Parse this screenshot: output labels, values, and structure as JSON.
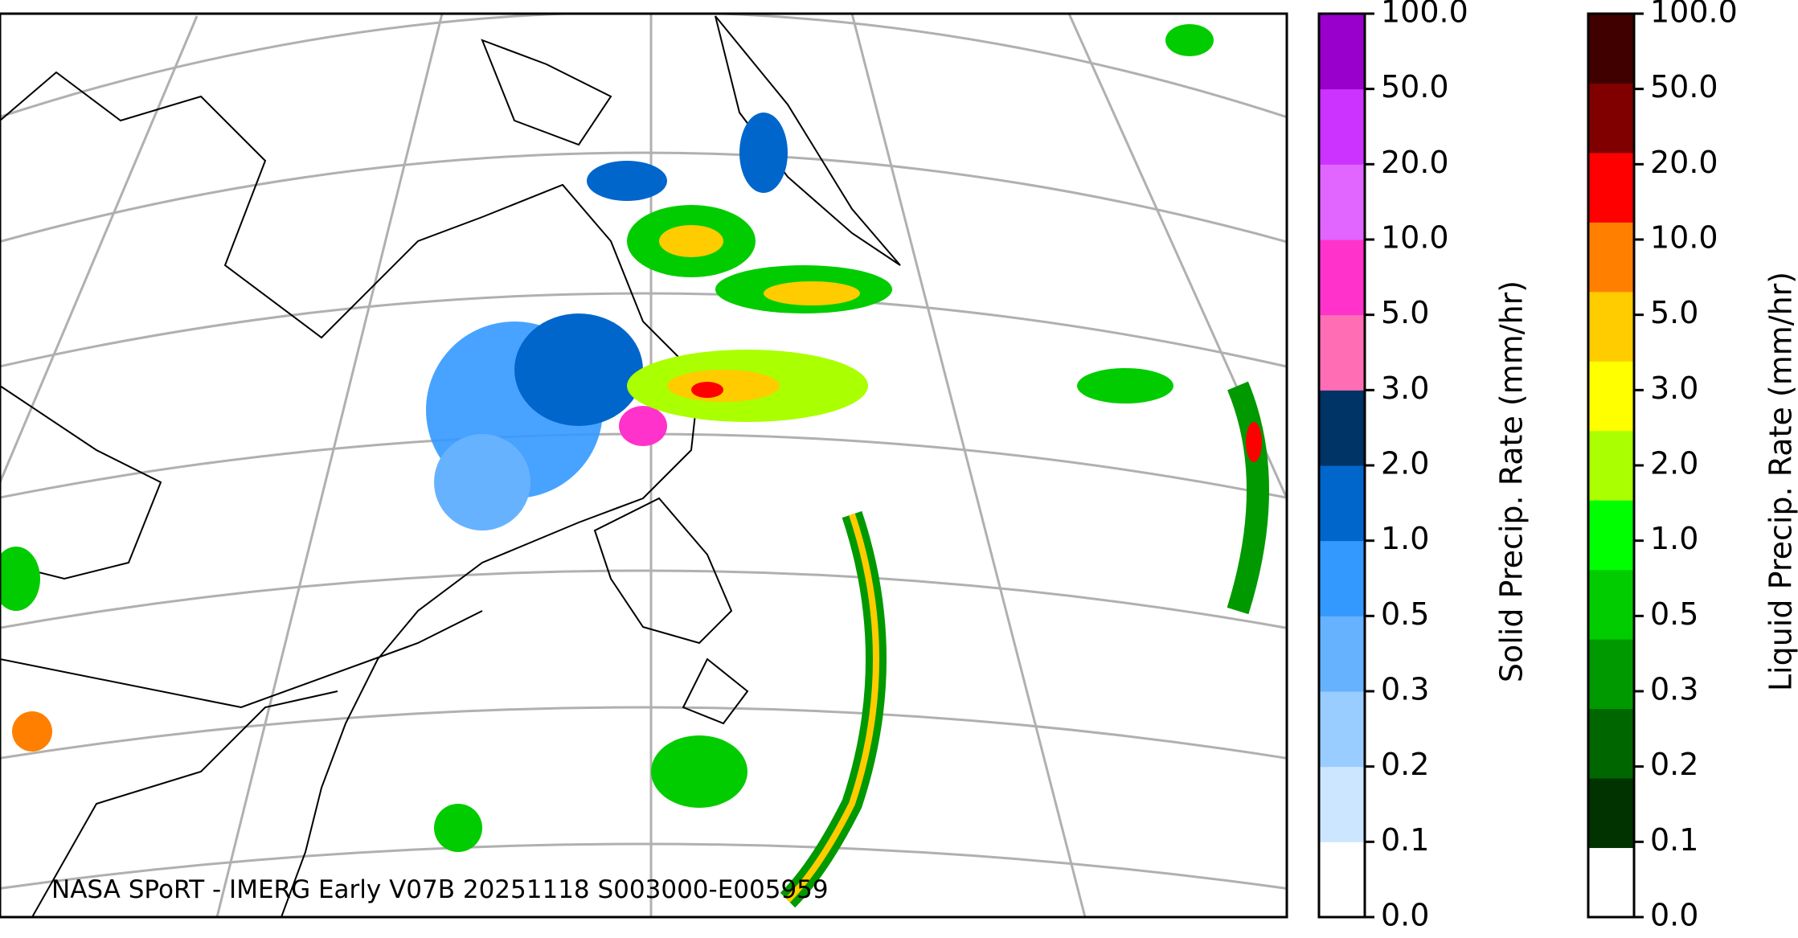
{
  "caption": "NASA SPoRT - IMERG Early V07B 20251118 S003000-E005959",
  "colorbars": [
    {
      "label": "Solid Precip. Rate (mm/hr)",
      "ticks": [
        "0.0",
        "0.1",
        "0.2",
        "0.3",
        "0.5",
        "1.0",
        "2.0",
        "3.0",
        "5.0",
        "10.0",
        "20.0",
        "50.0",
        "100.0"
      ],
      "colors": [
        "#ffffff",
        "#cce6ff",
        "#99ccff",
        "#66b2ff",
        "#3399ff",
        "#0066cc",
        "#003366",
        "#ff6eb4",
        "#ff33cc",
        "#e066ff",
        "#cc33ff",
        "#9900cc"
      ]
    },
    {
      "label": "Liquid Precip. Rate (mm/hr)",
      "ticks": [
        "0.0",
        "0.1",
        "0.2",
        "0.3",
        "0.5",
        "1.0",
        "2.0",
        "3.0",
        "5.0",
        "10.0",
        "20.0",
        "50.0",
        "100.0"
      ],
      "colors": [
        "#ffffff",
        "#003300",
        "#006600",
        "#009900",
        "#00cc00",
        "#00ff00",
        "#aaff00",
        "#ffff00",
        "#ffcc00",
        "#ff8000",
        "#ff0000",
        "#800000",
        "#400000"
      ]
    }
  ]
}
